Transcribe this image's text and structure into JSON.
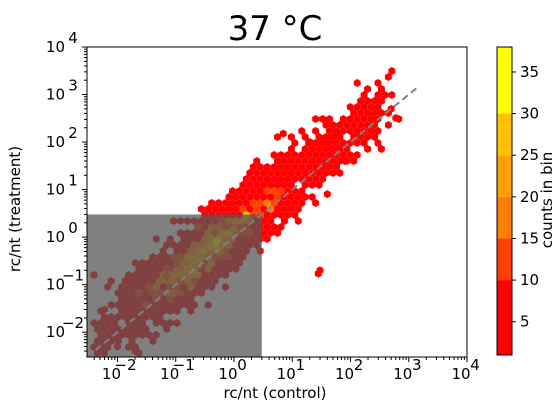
{
  "chart_data": {
    "type": "hexbin",
    "title": "37 °C",
    "xlabel": "rc/nt (control)",
    "ylabel": "rc/nt (treatment)",
    "x_scale": "log",
    "y_scale": "log",
    "xlim": [
      0.003,
      10000
    ],
    "ylim": [
      0.003,
      10000
    ],
    "x_ticks": [
      {
        "value": 0.01,
        "base": "10",
        "exp": "−2"
      },
      {
        "value": 0.1,
        "base": "10",
        "exp": "−1"
      },
      {
        "value": 1,
        "base": "10",
        "exp": "0"
      },
      {
        "value": 10,
        "base": "10",
        "exp": "1"
      },
      {
        "value": 100,
        "base": "10",
        "exp": "2"
      },
      {
        "value": 1000,
        "base": "10",
        "exp": "3"
      },
      {
        "value": 10000,
        "base": "10",
        "exp": "4"
      }
    ],
    "y_ticks": [
      {
        "value": 0.01,
        "base": "10",
        "exp": "−2"
      },
      {
        "value": 0.1,
        "base": "10",
        "exp": "−1"
      },
      {
        "value": 1,
        "base": "10",
        "exp": "0"
      },
      {
        "value": 10,
        "base": "10",
        "exp": "1"
      },
      {
        "value": 100,
        "base": "10",
        "exp": "2"
      },
      {
        "value": 1000,
        "base": "10",
        "exp": "3"
      },
      {
        "value": 10000,
        "base": "10",
        "exp": "4"
      }
    ],
    "diagonal": {
      "from": [
        0.003,
        0.003
      ],
      "to": [
        1500,
        1500
      ],
      "style": "dashed",
      "color": "#808080"
    },
    "shaded_region": {
      "x": [
        0.003,
        3
      ],
      "y": [
        0.003,
        3
      ],
      "color": "#555555",
      "opacity": 0.75
    },
    "colorbar": {
      "label": "counts in bin",
      "range": [
        1,
        38
      ],
      "ticks": [
        5,
        10,
        15,
        20,
        25,
        30,
        35
      ],
      "bands": [
        {
          "from": 1,
          "to": 10,
          "color": "#ff0000"
        },
        {
          "from": 10,
          "to": 15,
          "color": "#ff4000"
        },
        {
          "from": 15,
          "to": 20,
          "color": "#ff8000"
        },
        {
          "from": 20,
          "to": 25,
          "color": "#ffa000"
        },
        {
          "from": 25,
          "to": 30,
          "color": "#ffc000"
        },
        {
          "from": 30,
          "to": 38,
          "color": "#ffff00"
        }
      ]
    },
    "cluster_points": [
      {
        "x": 0.3,
        "y": 0.5,
        "count": 28
      },
      {
        "x": 0.5,
        "y": 0.8,
        "count": 32
      },
      {
        "x": 0.2,
        "y": 0.35,
        "count": 24
      },
      {
        "x": 0.8,
        "y": 1.2,
        "count": 26
      },
      {
        "x": 0.15,
        "y": 0.3,
        "count": 20
      },
      {
        "x": 0.4,
        "y": 0.6,
        "count": 30
      },
      {
        "x": 1.0,
        "y": 1.5,
        "count": 22
      },
      {
        "x": 0.1,
        "y": 0.2,
        "count": 18
      },
      {
        "x": 0.25,
        "y": 0.25,
        "count": 16
      },
      {
        "x": 0.6,
        "y": 0.5,
        "count": 19
      },
      {
        "x": 0.12,
        "y": 0.12,
        "count": 12
      },
      {
        "x": 0.07,
        "y": 0.15,
        "count": 11
      }
    ],
    "outliers": [
      {
        "x": 500,
        "y": 500,
        "count": 2
      },
      {
        "x": 600,
        "y": 320,
        "count": 1
      },
      {
        "x": 30,
        "y": 0.2,
        "count": 1
      },
      {
        "x": 28,
        "y": 0.17,
        "count": 1
      },
      {
        "x": 60,
        "y": 150,
        "count": 2
      },
      {
        "x": 80,
        "y": 40,
        "count": 1
      },
      {
        "x": 40,
        "y": 8,
        "count": 1
      },
      {
        "x": 20,
        "y": 100,
        "count": 1
      },
      {
        "x": 7,
        "y": 150,
        "count": 1
      },
      {
        "x": 0.01,
        "y": 0.005,
        "count": 1
      },
      {
        "x": 0.006,
        "y": 0.03,
        "count": 1
      },
      {
        "x": 0.02,
        "y": 0.004,
        "count": 1
      }
    ]
  }
}
